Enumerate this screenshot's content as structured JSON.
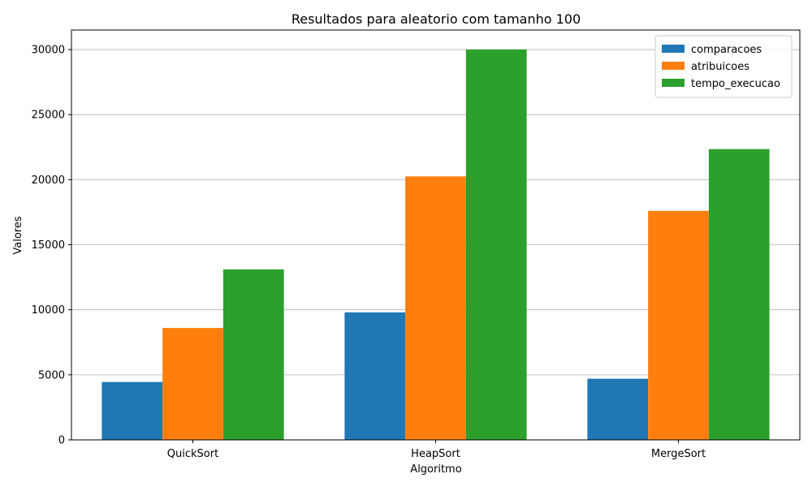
{
  "chart_data": {
    "type": "bar",
    "title": "Resultados para aleatorio com tamanho 100",
    "xlabel": "Algoritmo",
    "ylabel": "Valores",
    "categories": [
      "QuickSort",
      "HeapSort",
      "MergeSort"
    ],
    "series": [
      {
        "name": "comparacoes",
        "color": "#1f77b4",
        "values": [
          4450,
          9800,
          4700
        ]
      },
      {
        "name": "atribuicoes",
        "color": "#ff7f0e",
        "values": [
          8600,
          20250,
          17600
        ]
      },
      {
        "name": "tempo_execucao",
        "color": "#2ca02c",
        "values": [
          13100,
          30000,
          22350
        ]
      }
    ],
    "ylim": [
      0,
      31500
    ],
    "yticks": [
      0,
      5000,
      10000,
      15000,
      20000,
      25000,
      30000
    ],
    "grid": "y",
    "legend_position": "top-right"
  }
}
